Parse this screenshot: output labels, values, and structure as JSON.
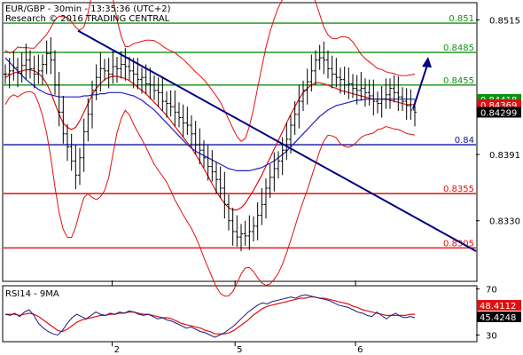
{
  "chart_data": {
    "type": "candlestick",
    "header": {
      "instrument_line": "EUR/GBP - 30min - 13:35:36 (UTC+2)",
      "research_line": "Research © 2016 TRADING CENTRAL"
    },
    "price_panel": {
      "y_ticks": [
        "0.8515",
        "0.8391",
        "0.8330"
      ],
      "y_tick_values": [
        0.8515,
        0.8391,
        0.833
      ],
      "ylim": [
        0.8275,
        0.853
      ],
      "levels": [
        {
          "label": "0.851",
          "value": 0.8512,
          "color": "#109010"
        },
        {
          "label": "0.8485",
          "value": 0.8485,
          "color": "#109010"
        },
        {
          "label": "0.8455",
          "value": 0.8455,
          "color": "#109010"
        },
        {
          "label": "0.84",
          "value": 0.84,
          "color": "#1010a0"
        },
        {
          "label": "0.8355",
          "value": 0.8355,
          "color": "#e01010"
        },
        {
          "label": "0.8305",
          "value": 0.8305,
          "color": "#e01010"
        }
      ],
      "price_boxes": [
        {
          "label": "0.84418",
          "value": 0.84418,
          "bg": "#109010"
        },
        {
          "label": "0.84369",
          "value": 0.84369,
          "bg": "#e01010"
        },
        {
          "label": "0.84299",
          "value": 0.84299,
          "bg": "#000000"
        }
      ],
      "trendline": {
        "from": [
          0,
          0.8505
        ],
        "to": [
          100,
          0.8302
        ],
        "color": "#000080"
      },
      "forecast_arrow": {
        "from": [
          98,
          0.8433
        ],
        "to": [
          100,
          0.848
        ],
        "color": "#000080"
      },
      "close_series": [
        0.8465,
        0.8468,
        0.8471,
        0.8466,
        0.8473,
        0.8478,
        0.847,
        0.8465,
        0.8468,
        0.8474,
        0.8484,
        0.8478,
        0.8455,
        0.843,
        0.841,
        0.8398,
        0.8385,
        0.8372,
        0.8388,
        0.8412,
        0.8428,
        0.845,
        0.8462,
        0.847,
        0.8468,
        0.8465,
        0.8472,
        0.847,
        0.8474,
        0.8472,
        0.8468,
        0.8465,
        0.846,
        0.8462,
        0.8456,
        0.8455,
        0.845,
        0.8448,
        0.844,
        0.8438,
        0.8435,
        0.843,
        0.8425,
        0.842,
        0.8418,
        0.841,
        0.84,
        0.8395,
        0.8388,
        0.838,
        0.8375,
        0.8368,
        0.836,
        0.8345,
        0.833,
        0.832,
        0.8315,
        0.8318,
        0.8316,
        0.832,
        0.8325,
        0.8335,
        0.8345,
        0.836,
        0.837,
        0.8378,
        0.8385,
        0.8395,
        0.8405,
        0.8418,
        0.8428,
        0.844,
        0.845,
        0.8458,
        0.8468,
        0.8478,
        0.848,
        0.8478,
        0.847,
        0.8465,
        0.8462,
        0.846,
        0.8455,
        0.8456,
        0.8452,
        0.845,
        0.8452,
        0.8448,
        0.8445,
        0.844,
        0.8438,
        0.8442,
        0.8446,
        0.8452,
        0.8448,
        0.8444,
        0.844,
        0.8436,
        0.8432,
        0.843
      ],
      "ma_fast": [
        0.8462,
        0.8464,
        0.8466,
        0.8467,
        0.8468,
        0.8469,
        0.8469,
        0.8468,
        0.8466,
        0.8462,
        0.8456,
        0.8448,
        0.8438,
        0.8428,
        0.842,
        0.8416,
        0.8414,
        0.8416,
        0.8422,
        0.843,
        0.8438,
        0.8446,
        0.8452,
        0.8456,
        0.846,
        0.8462,
        0.8463,
        0.8463,
        0.8462,
        0.8461,
        0.8459,
        0.8456,
        0.8453,
        0.845,
        0.8447,
        0.8443,
        0.8439,
        0.8435,
        0.8431,
        0.8427,
        0.8422,
        0.8417,
        0.8412,
        0.8407,
        0.8402,
        0.8397,
        0.8391,
        0.8385,
        0.8378,
        0.8371,
        0.8364,
        0.8357,
        0.8351,
        0.8346,
        0.8342,
        0.834,
        0.834,
        0.8342,
        0.8346,
        0.8352,
        0.8358,
        0.8365,
        0.8372,
        0.838,
        0.8388,
        0.8396,
        0.8404,
        0.8412,
        0.842,
        0.8428,
        0.8435,
        0.8442,
        0.8448,
        0.8452,
        0.8455,
        0.8457,
        0.8457,
        0.8456,
        0.8455,
        0.8453,
        0.8452,
        0.845,
        0.8449,
        0.8448,
        0.8447,
        0.8446,
        0.8445,
        0.8444,
        0.8443,
        0.8442,
        0.8442,
        0.8442,
        0.8442,
        0.8441,
        0.844,
        0.8439,
        0.8438,
        0.8437,
        0.8437,
        0.8437
      ],
      "ma_slow": [
        0.848,
        0.8476,
        0.8472,
        0.8468,
        0.8464,
        0.846,
        0.8457,
        0.8454,
        0.8451,
        0.8449,
        0.8447,
        0.8446,
        0.8445,
        0.8444,
        0.8444,
        0.8444,
        0.8444,
        0.8444,
        0.8444,
        0.8445,
        0.8445,
        0.8446,
        0.8446,
        0.8447,
        0.8447,
        0.8448,
        0.8448,
        0.8448,
        0.8448,
        0.8447,
        0.8446,
        0.8445,
        0.8443,
        0.8441,
        0.8438,
        0.8435,
        0.8432,
        0.8428,
        0.8424,
        0.842,
        0.8416,
        0.8412,
        0.8408,
        0.8404,
        0.84,
        0.8397,
        0.8394,
        0.8392,
        0.839,
        0.8388,
        0.8386,
        0.8384,
        0.8382,
        0.838,
        0.8378,
        0.8377,
        0.8376,
        0.8376,
        0.8376,
        0.8376,
        0.8377,
        0.8378,
        0.8379,
        0.8381,
        0.8383,
        0.8385,
        0.8388,
        0.8391,
        0.8394,
        0.8398,
        0.8402,
        0.8406,
        0.841,
        0.8414,
        0.8418,
        0.8422,
        0.8426,
        0.8429,
        0.8432,
        0.8434,
        0.8436,
        0.8437,
        0.8438,
        0.8439,
        0.844,
        0.8441,
        0.8441,
        0.8442,
        0.8442,
        0.8442,
        0.8442,
        0.8442,
        0.8442,
        0.8442,
        0.8442,
        0.8442,
        0.8442,
        0.8442,
        0.8442,
        0.8442
      ]
    },
    "rsi_panel": {
      "title": "RSI14 - 9MA",
      "ylim": [
        25,
        72
      ],
      "y_ticks": [
        "70",
        "30"
      ],
      "y_tick_values": [
        70,
        30
      ],
      "value_boxes": [
        {
          "label": "48.4112",
          "value": 48.4,
          "bg": "#e01010"
        },
        {
          "label": "45.4248",
          "value": 45.4,
          "bg": "#000000"
        }
      ],
      "rsi_series": [
        48,
        47,
        49,
        46,
        50,
        52,
        47,
        40,
        36,
        33,
        31,
        30,
        34,
        40,
        45,
        48,
        46,
        44,
        47,
        50,
        48,
        47,
        49,
        48,
        50,
        49,
        51,
        50,
        48,
        47,
        48,
        46,
        44,
        45,
        43,
        42,
        40,
        38,
        36,
        37,
        35,
        33,
        32,
        30,
        28,
        30,
        32,
        35,
        38,
        42,
        46,
        50,
        53,
        56,
        58,
        57,
        59,
        60,
        61,
        62,
        63,
        62,
        64,
        65,
        64,
        63,
        62,
        61,
        60,
        58,
        56,
        55,
        54,
        52,
        50,
        49,
        47,
        46,
        50,
        47,
        44,
        47,
        49,
        46,
        45,
        46,
        45
      ],
      "ma_series": [
        48,
        48,
        48,
        47,
        48,
        49,
        48,
        46,
        43,
        40,
        37,
        34,
        33,
        35,
        38,
        41,
        43,
        44,
        45,
        46,
        47,
        47,
        48,
        48,
        49,
        49,
        50,
        50,
        49,
        48,
        48,
        47,
        46,
        45,
        45,
        44,
        42,
        40,
        39,
        38,
        37,
        36,
        34,
        33,
        31,
        31,
        31,
        32,
        34,
        37,
        40,
        43,
        47,
        50,
        53,
        55,
        56,
        57,
        58,
        59,
        60,
        61,
        62,
        62,
        63,
        63,
        62,
        62,
        61,
        60,
        59,
        58,
        57,
        55,
        54,
        52,
        51,
        50,
        49,
        48,
        47,
        47,
        47,
        47,
        47,
        48,
        48
      ]
    },
    "x_ticks": [
      {
        "label": "2",
        "pos": 0.23
      },
      {
        "label": "5",
        "pos": 0.49
      },
      {
        "label": "6",
        "pos": 0.745
      }
    ]
  }
}
